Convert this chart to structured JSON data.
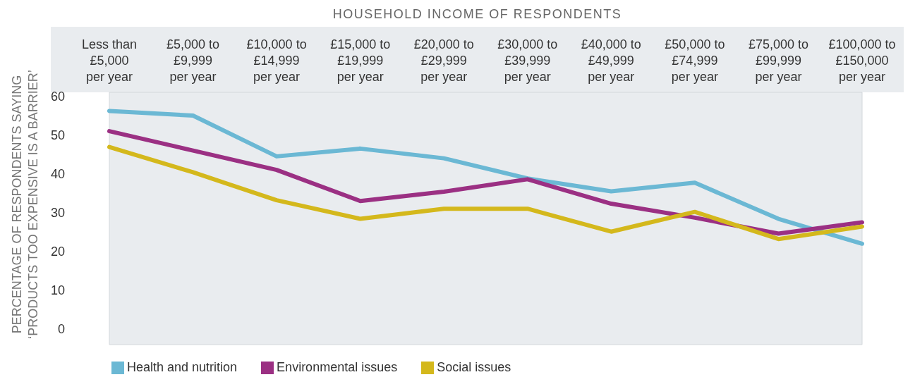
{
  "chart_data": {
    "type": "line",
    "title": "HOUSEHOLD INCOME OF RESPONDENTS",
    "ylabel": "PERCENTAGE OF RESPONDENTS SAYING\n‘PRODUCTS TOO EXPENSIVE IS A BARRIER’",
    "categories": [
      "Less than\n£5,000\nper year",
      "£5,000 to\n£9,999\nper year",
      "£10,000 to\n£14,999\nper year",
      "£15,000 to\n£19,999\nper year",
      "£20,000 to\n£29,999\nper year",
      "£30,000 to\n£39,999\nper year",
      "£40,000 to\n£49,999\nper year",
      "£50,000 to\n£74,999\nper year",
      "£75,000 to\n£99,999\nper year",
      "£100,000 to\n£150,000\nper year"
    ],
    "series": [
      {
        "name": "Health and nutrition",
        "color": "#6bb8d4",
        "values": [
          56.2,
          55,
          44.5,
          46.5,
          44,
          38.8,
          35.5,
          37.7,
          28.4,
          22
        ]
      },
      {
        "name": "Environmental issues",
        "color": "#9b3083",
        "values": [
          51,
          46,
          41,
          33,
          35.4,
          38.6,
          32.3,
          28.7,
          24.6,
          27.5
        ]
      },
      {
        "name": "Social issues",
        "color": "#d4b81c",
        "values": [
          46.9,
          40.4,
          33.2,
          28.4,
          31,
          31,
          25.1,
          30.2,
          23.2,
          26.4
        ]
      }
    ],
    "ylim": [
      -4,
      61
    ],
    "yticks": [
      0,
      10,
      20,
      30,
      40,
      50,
      60
    ],
    "grid": false,
    "legend": "bottom",
    "marker": "none",
    "line_style": "solid"
  }
}
